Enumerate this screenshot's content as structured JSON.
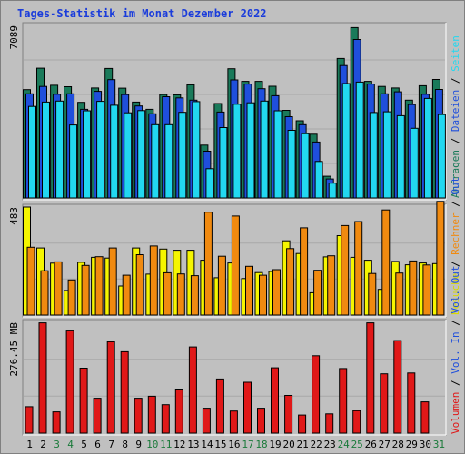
{
  "title": "Tages-Statistik im Monat Dezember 2022",
  "colors": {
    "anfragen": "#1a7a5a",
    "dateien": "#1f4fdc",
    "seiten": "#22d8f0",
    "besuche": "#f5f500",
    "rechner": "#f08a10",
    "volumen": "#e01818",
    "title": "#1a3cdb",
    "weekend_day": "#1a7a3a",
    "weekday": "#000000",
    "panel_bg": "#c0c0c0"
  },
  "y_labels": {
    "top": "7089",
    "middle": "483",
    "bottom": "276.45 MB"
  },
  "right_legend": {
    "top": [
      {
        "text": "Anfragen",
        "color": "#1a7a5a"
      },
      {
        "text": "Dateien",
        "color": "#1f4fdc"
      },
      {
        "text": "Seiten",
        "color": "#22d8f0"
      }
    ],
    "middle": [
      {
        "text": "Besuche",
        "color": "#d8d800"
      },
      {
        "text": "Rechner",
        "color": "#f08a10"
      },
      {
        "text": "Out",
        "color": "#1f4fdc"
      }
    ],
    "bottom": [
      {
        "text": "Volumen",
        "color": "#e01818"
      },
      {
        "text": "Vol. In",
        "color": "#1f4fdc"
      },
      {
        "text": "Vol. Out",
        "color": "#1f4fdc"
      }
    ],
    "separator": " / "
  },
  "chart_data": {
    "type": "bar",
    "x": [
      "1",
      "2",
      "3",
      "4",
      "5",
      "6",
      "7",
      "8",
      "9",
      "10",
      "11",
      "12",
      "13",
      "14",
      "15",
      "16",
      "17",
      "18",
      "19",
      "20",
      "21",
      "22",
      "23",
      "24",
      "25",
      "26",
      "27",
      "28",
      "29",
      "30",
      "31"
    ],
    "weekend_days": [
      "3",
      "4",
      "10",
      "11",
      "17",
      "18",
      "24",
      "25",
      "31"
    ],
    "panels": [
      {
        "name": "requests",
        "ymax": 7089,
        "series": [
          {
            "name": "Anfragen",
            "values": [
              4450,
              5330,
              4630,
              4570,
              3930,
              4520,
              5320,
              4510,
              3940,
              3640,
              4250,
              4240,
              4650,
              2170,
              3880,
              5310,
              4790,
              4790,
              4590,
              3600,
              3170,
              2620,
              890,
              5730,
              7000,
              4790,
              4580,
              4520,
              4020,
              4610,
              4870
            ]
          },
          {
            "name": "Dateien",
            "values": [
              4280,
              4580,
              4260,
              4280,
              3640,
              4380,
              4860,
              4250,
              3780,
              3460,
              4160,
              4110,
              4020,
              1920,
              3530,
              4850,
              4680,
              4490,
              4200,
              3340,
              3010,
              2300,
              780,
              5440,
              6510,
              4680,
              4280,
              4360,
              3840,
              4260,
              4460
            ]
          },
          {
            "name": "Seiten",
            "values": [
              3760,
              3940,
              3980,
              3000,
              3580,
              3970,
              3810,
              3500,
              3590,
              3010,
              3010,
              3520,
              3960,
              1200,
              2890,
              3850,
              3910,
              3980,
              3580,
              2780,
              2640,
              1500,
              610,
              4700,
              4760,
              3510,
              3540,
              3380,
              2860,
              4090,
              3430
            ]
          }
        ]
      },
      {
        "name": "visits",
        "ymax": 483,
        "series": [
          {
            "name": "Besuche",
            "values": [
              483,
              300,
              232,
              110,
              236,
              258,
              255,
              130,
              300,
              183,
              295,
              290,
              290,
              245,
              167,
              233,
              163,
              190,
              195,
              332,
              275,
              100,
              260,
              355,
              258,
              245,
              115,
              240,
              225,
              233,
              230
            ]
          },
          {
            "name": "Rechner",
            "values": [
              303,
              198,
              238,
              157,
              222,
              261,
              300,
              178,
              270,
              309,
              189,
              184,
              176,
              460,
              263,
              443,
              218,
              178,
              203,
              297,
              390,
              200,
              265,
              400,
              418,
              186,
              470,
              188,
              242,
              224,
              508
            ]
          }
        ]
      },
      {
        "name": "volume",
        "ymax": 276.45,
        "series": [
          {
            "name": "Volumen",
            "values": [
              66,
              275,
              53,
              257,
              162,
              87,
              228,
              203,
              87,
              92,
              71,
              110,
              215,
              62,
              135,
              55,
              127,
              62,
              163,
              94,
              45,
              193,
              48,
              161,
              56,
              275,
              148,
              231,
              150,
              78,
              0
            ]
          }
        ]
      }
    ]
  }
}
